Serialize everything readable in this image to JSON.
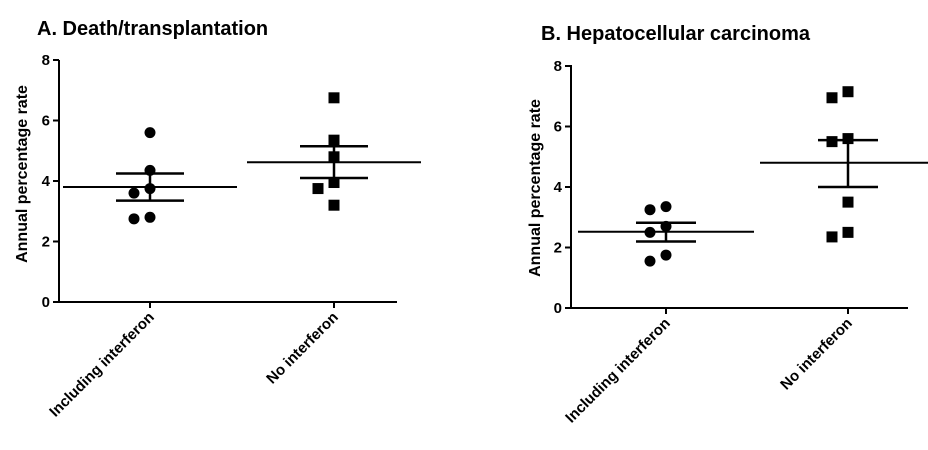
{
  "chart_data": [
    {
      "type": "scatter",
      "title": "A. Death/transplantation",
      "ylabel": "Annual percentage rate",
      "xlabel": "",
      "ylim": [
        0,
        8
      ],
      "yticks": [
        0,
        2,
        4,
        6,
        8
      ],
      "ytick_labels": [
        "0",
        "2",
        "4",
        "6",
        "8"
      ],
      "categories": [
        "Including interferon",
        "No interferon"
      ],
      "series": [
        {
          "category": "Including interferon",
          "marker": "circle",
          "values": [
            5.6,
            4.35,
            3.75,
            3.6,
            2.8,
            2.75
          ],
          "mean": 3.8,
          "sem": [
            3.35,
            4.25
          ]
        },
        {
          "category": "No interferon",
          "marker": "square",
          "values": [
            6.75,
            5.35,
            4.8,
            3.95,
            3.75,
            3.2
          ],
          "mean": 4.62,
          "sem": [
            4.1,
            5.15
          ]
        }
      ]
    },
    {
      "type": "scatter",
      "title": "B. Hepatocellular carcinoma",
      "ylabel": "Annual percentage rate",
      "xlabel": "",
      "ylim": [
        0,
        8
      ],
      "yticks": [
        0,
        2,
        4,
        6,
        8
      ],
      "ytick_labels": [
        "0",
        "2",
        "4",
        "6",
        "8"
      ],
      "categories": [
        "Including interferon",
        "No interferon"
      ],
      "series": [
        {
          "category": "Including interferon",
          "marker": "circle",
          "values": [
            3.35,
            3.25,
            2.7,
            2.5,
            1.75,
            1.55
          ],
          "mean": 2.52,
          "sem": [
            2.2,
            2.82
          ]
        },
        {
          "category": "No interferon",
          "marker": "square",
          "values": [
            7.15,
            6.95,
            5.6,
            5.5,
            3.5,
            2.5,
            2.35
          ],
          "mean": 4.8,
          "sem": [
            4.0,
            5.55
          ]
        }
      ]
    }
  ]
}
